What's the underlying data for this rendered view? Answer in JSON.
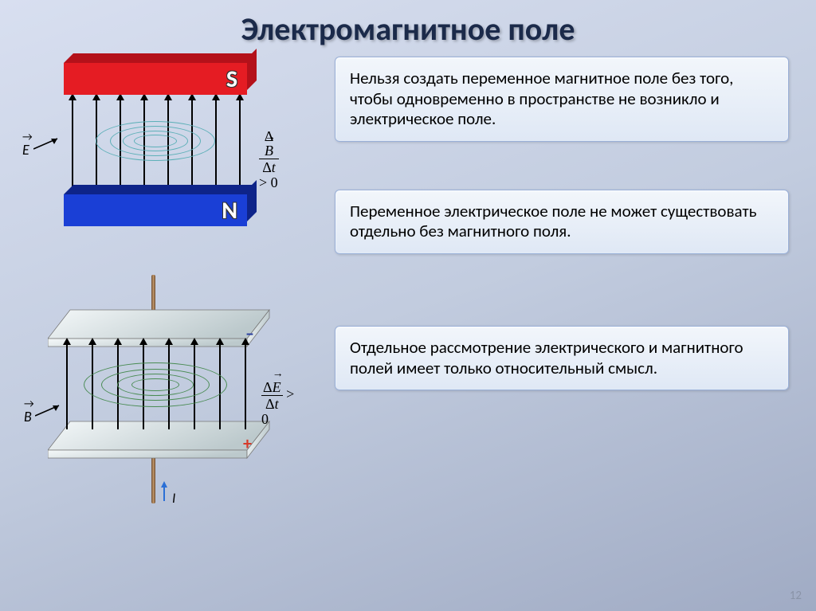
{
  "title": "Электромагнитное поле",
  "title_color": "#1b2a4a",
  "page_number": "12",
  "textbox1": "Нельзя создать переменное магнитное поле без того, чтобы одновременно в пространстве не возникло и электрическое поле.",
  "textbox2": "Переменное электрическое поле не может существовать отдельно без магнитного поля.",
  "textbox3": "Отдельное рассмотрение электрического и магнитного полей имеет только относительный смысл.",
  "magnet": {
    "s_label": "S",
    "n_label": "N",
    "s_color": "#e51c23",
    "s_color_dark": "#b4111a",
    "n_color": "#1a3fd6",
    "n_color_dark": "#0e2489",
    "e_vector": "E",
    "formula_var": "B",
    "formula_gt": " > 0",
    "ellipse_color": "#5db0b8",
    "arrow_count": 8
  },
  "capacitor": {
    "b_vector": "B",
    "formula_var": "E",
    "formula_gt": " > 0",
    "plus": "+",
    "minus": "–",
    "plus_color": "#d63a2a",
    "minus_color": "#2a3fa0",
    "current_label": "I",
    "plate_fill": "#d8e2e4",
    "plate_fill_light": "#f4f8f9",
    "ellipse_color": "#4a8c54",
    "arrow_count": 8
  }
}
